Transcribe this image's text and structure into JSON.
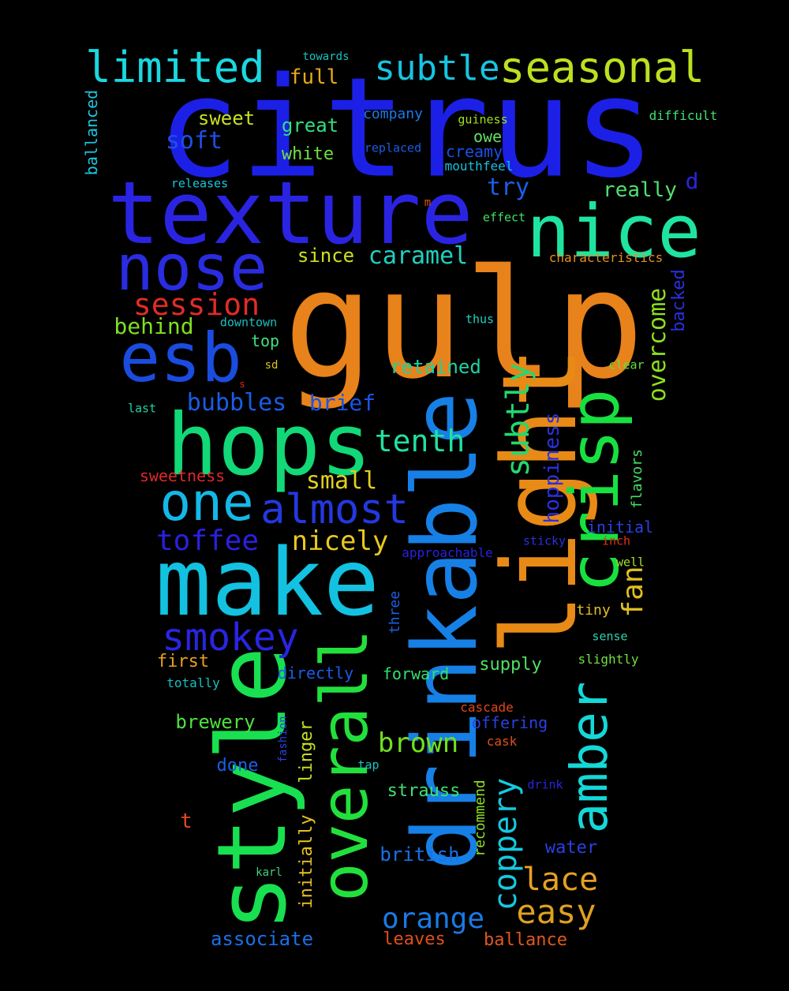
{
  "words": [
    {
      "text": "citrus",
      "color": "#1c20e6"
    },
    {
      "text": "gulp",
      "color": "#e8821a"
    },
    {
      "text": "texture",
      "color": "#2a24e2"
    },
    {
      "text": "nose",
      "color": "#2a2ce0"
    },
    {
      "text": "nice",
      "color": "#1fe4a0"
    },
    {
      "text": "esb",
      "color": "#1a4ce0"
    },
    {
      "text": "hops",
      "color": "#12d878"
    },
    {
      "text": "make",
      "color": "#12c2e0"
    },
    {
      "text": "style",
      "color": "#18e050"
    },
    {
      "text": "drinkable",
      "color": "#1680e6"
    },
    {
      "text": "light",
      "color": "#e88a16"
    },
    {
      "text": "overall",
      "color": "#22e03c"
    },
    {
      "text": "crisp",
      "color": "#18e040"
    },
    {
      "text": "amber",
      "color": "#14d8d8"
    },
    {
      "text": "limited",
      "color": "#1ad8e0"
    },
    {
      "text": "subtle",
      "color": "#16c4e0"
    },
    {
      "text": "seasonal",
      "color": "#bce020"
    },
    {
      "text": "one",
      "color": "#14b8e6"
    },
    {
      "text": "almost",
      "color": "#2438e0"
    },
    {
      "text": "session",
      "color": "#e02c28"
    },
    {
      "text": "smokey",
      "color": "#2a24e2"
    },
    {
      "text": "toffee",
      "color": "#2a20e0"
    },
    {
      "text": "nicely",
      "color": "#e8c820"
    },
    {
      "text": "subtly",
      "color": "#22d870"
    },
    {
      "text": "tenth",
      "color": "#22e0a0"
    },
    {
      "text": "coppery",
      "color": "#16c8e0"
    },
    {
      "text": "lace",
      "color": "#e8a020"
    },
    {
      "text": "easy",
      "color": "#e0a020"
    },
    {
      "text": "orange",
      "color": "#1a7ae6"
    },
    {
      "text": "fan",
      "color": "#e0c020"
    },
    {
      "text": "overcome",
      "color": "#8ce020"
    },
    {
      "text": "caramel",
      "color": "#20d0c0"
    },
    {
      "text": "brown",
      "color": "#70e020"
    },
    {
      "text": "bubbles",
      "color": "#1a5ce6"
    },
    {
      "text": "small",
      "color": "#e0d020"
    },
    {
      "text": "behind",
      "color": "#80e020"
    },
    {
      "text": "brief",
      "color": "#1a54e6"
    },
    {
      "text": "retained",
      "color": "#20d0a0"
    },
    {
      "text": "hoppiness",
      "color": "#2a30e0"
    },
    {
      "text": "soft",
      "color": "#1c50e6"
    },
    {
      "text": "full",
      "color": "#e8a818"
    },
    {
      "text": "sweet",
      "color": "#c8e020"
    },
    {
      "text": "great",
      "color": "#30e080"
    },
    {
      "text": "white",
      "color": "#70e040"
    },
    {
      "text": "try",
      "color": "#1a60e6"
    },
    {
      "text": "really",
      "color": "#50e070"
    },
    {
      "text": "d",
      "color": "#2a24e2"
    },
    {
      "text": "since",
      "color": "#d0e020"
    },
    {
      "text": "top",
      "color": "#40e080"
    },
    {
      "text": "ballanced",
      "color": "#18c8e0"
    },
    {
      "text": "company",
      "color": "#1a7ae6"
    },
    {
      "text": "owe",
      "color": "#60e060"
    },
    {
      "text": "creamy",
      "color": "#1a50e6"
    },
    {
      "text": "replaced",
      "color": "#1a5ce6"
    },
    {
      "text": "mouthfeel",
      "color": "#16c0e0"
    },
    {
      "text": "guiness",
      "color": "#a0e020"
    },
    {
      "text": "difficult",
      "color": "#40e070"
    },
    {
      "text": "towards",
      "color": "#16c4c0"
    },
    {
      "text": "releases",
      "color": "#16c8e0"
    },
    {
      "text": "m",
      "color": "#e05018"
    },
    {
      "text": "effect",
      "color": "#40e060"
    },
    {
      "text": "characteristics",
      "color": "#e89020"
    },
    {
      "text": "backed",
      "color": "#2a30e0"
    },
    {
      "text": "downtown",
      "color": "#18c0c0"
    },
    {
      "text": "thus",
      "color": "#20d0c0"
    },
    {
      "text": "clear",
      "color": "#60e040"
    },
    {
      "text": "sd",
      "color": "#e0c020"
    },
    {
      "text": "s",
      "color": "#e02820"
    },
    {
      "text": "last",
      "color": "#20d0a0"
    },
    {
      "text": "sweetness",
      "color": "#e02828"
    },
    {
      "text": "flavors",
      "color": "#40e060"
    },
    {
      "text": "initial",
      "color": "#2a40e0"
    },
    {
      "text": "approachable",
      "color": "#2a20e0"
    },
    {
      "text": "sticky",
      "color": "#2a30e0"
    },
    {
      "text": "inch",
      "color": "#e03018"
    },
    {
      "text": "well",
      "color": "#a8e030"
    },
    {
      "text": "tiny",
      "color": "#e0c020"
    },
    {
      "text": "sense",
      "color": "#30d0b0"
    },
    {
      "text": "slightly",
      "color": "#70e040"
    },
    {
      "text": "three",
      "color": "#1a60e6"
    },
    {
      "text": "first",
      "color": "#e8a020"
    },
    {
      "text": "directly",
      "color": "#1a5ce6"
    },
    {
      "text": "forward",
      "color": "#30e070"
    },
    {
      "text": "supply",
      "color": "#50e060"
    },
    {
      "text": "totally",
      "color": "#16c0c0"
    },
    {
      "text": "brewery",
      "color": "#50e040"
    },
    {
      "text": "cascade",
      "color": "#e04818"
    },
    {
      "text": "offering",
      "color": "#2a40e0"
    },
    {
      "text": "fashion",
      "color": "#2a40e0"
    },
    {
      "text": "linger",
      "color": "#c8e020"
    },
    {
      "text": "done",
      "color": "#1a60e6"
    },
    {
      "text": "tap",
      "color": "#16c4c0"
    },
    {
      "text": "cask",
      "color": "#e05018"
    },
    {
      "text": "drink",
      "color": "#2a24e2"
    },
    {
      "text": "t",
      "color": "#e04820"
    },
    {
      "text": "strauss",
      "color": "#40e070"
    },
    {
      "text": "recommend",
      "color": "#90e020"
    },
    {
      "text": "initially",
      "color": "#e8c020"
    },
    {
      "text": "british",
      "color": "#1a70e6"
    },
    {
      "text": "water",
      "color": "#2a40e0"
    },
    {
      "text": "karl",
      "color": "#40d080"
    },
    {
      "text": "associate",
      "color": "#1a70e6"
    },
    {
      "text": "leaves",
      "color": "#e05018"
    },
    {
      "text": "ballance",
      "color": "#e05820"
    }
  ]
}
